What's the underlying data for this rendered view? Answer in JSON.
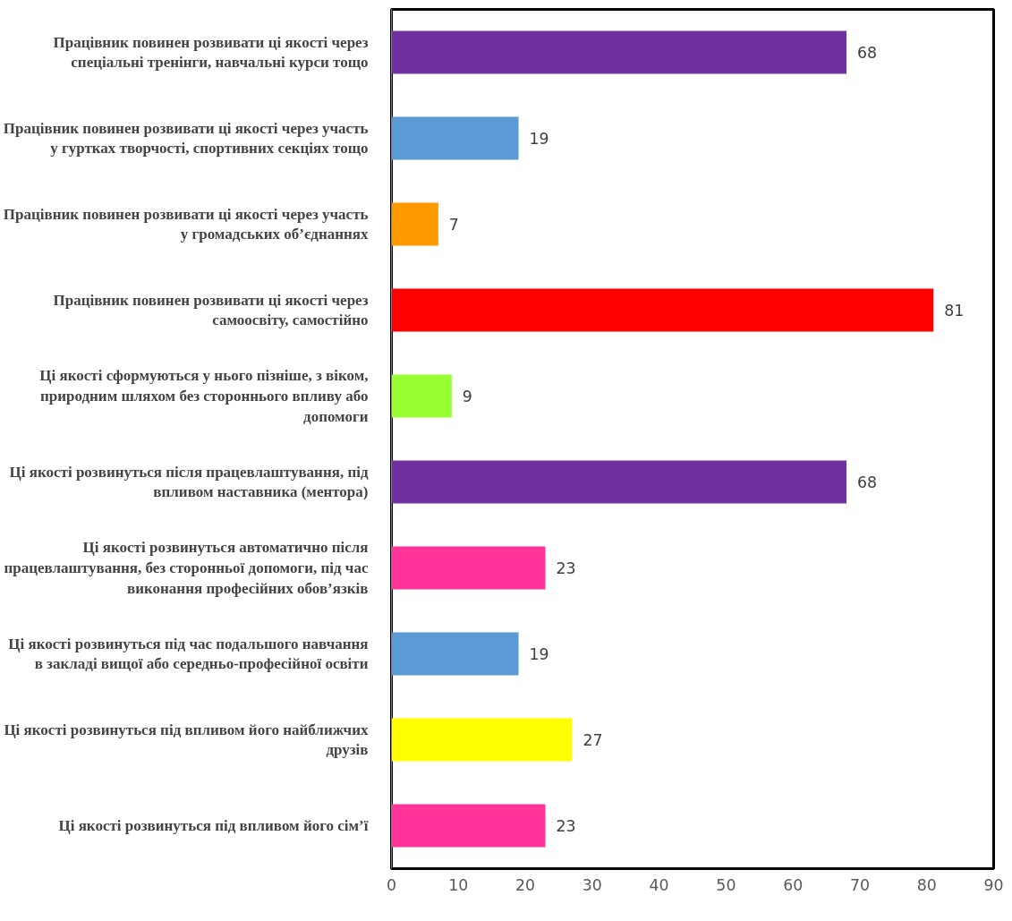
{
  "chart_data": {
    "type": "bar",
    "orientation": "horizontal",
    "categories": [
      "Працівник повинен розвивати ці якості через спеціальні тренінги, навчальні курси тощо",
      "Працівник повинен розвивати ці якості через участь у гуртках творчості, спортивних секціях тощо",
      "Працівник повинен розвивати ці якості через участь у громадських об’єднаннях",
      "Працівник повинен розвивати ці якості через самоосвіту, самостійно",
      "Ці якості сформуються у нього пізніше, з віком, природним шляхом без стороннього впливу або допомоги",
      "Ці якості розвинуться після працевлаштування, під впливом наставника (ментора)",
      "Ці якості розвинуться автоматично після працевлаштування, без сторонньої допомоги, під час виконання професійних обов’язків",
      "Ці якості розвинуться під час подальшого навчання в закладі вищої або середньо-професійної освіти",
      "Ці якості розвинуться під впливом його найближчих друзів",
      "Ці якості розвинуться під впливом його сім’ї"
    ],
    "values": [
      68,
      19,
      7,
      81,
      9,
      68,
      23,
      19,
      27,
      23
    ],
    "colors": [
      "#7030a0",
      "#5b9bd5",
      "#ff9900",
      "#ff0000",
      "#99ff33",
      "#7030a0",
      "#ff3399",
      "#5b9bd5",
      "#ffff00",
      "#ff3399"
    ],
    "xlim": [
      0,
      90
    ],
    "xticks": [
      0,
      10,
      20,
      30,
      40,
      50,
      60,
      70,
      80,
      90
    ],
    "data_labels": true
  }
}
